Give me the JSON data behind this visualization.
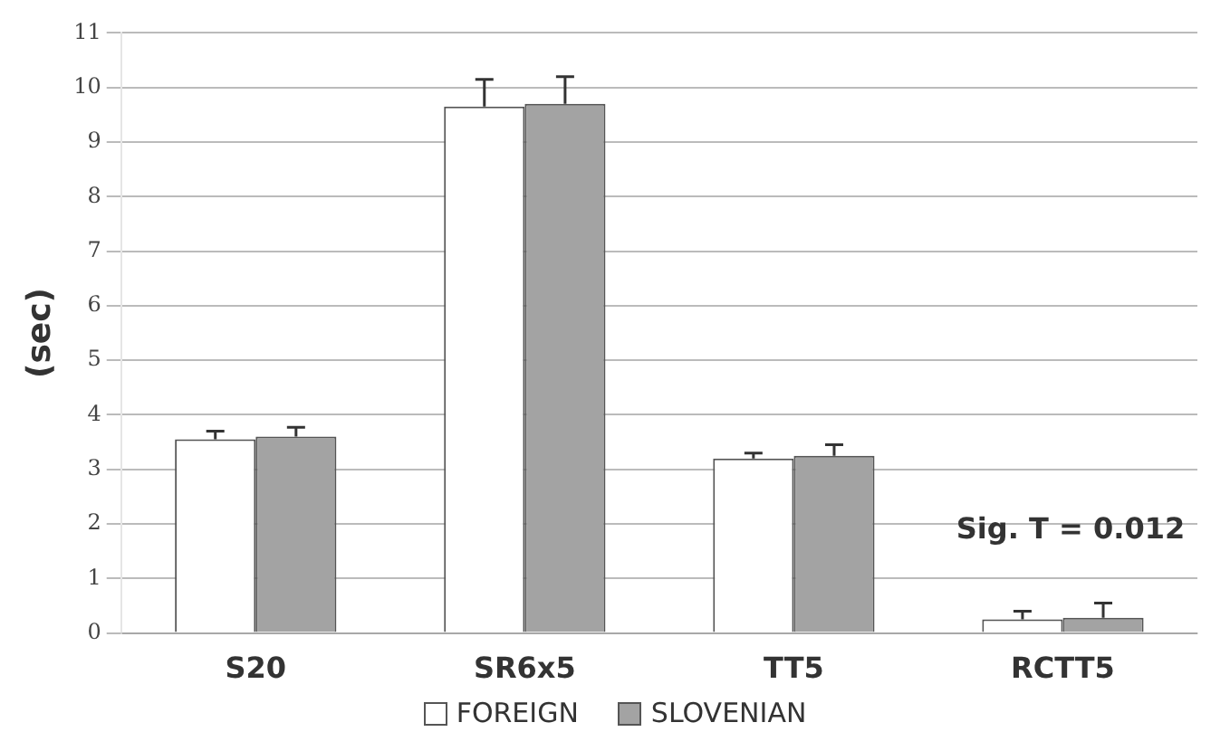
{
  "chart_data": {
    "type": "bar",
    "ylabel": "(sec)",
    "categories": [
      "S20",
      "SR6x5",
      "TT5",
      "RCTT5"
    ],
    "series": [
      {
        "name": "FOREIGN",
        "color": "#ffffff",
        "values": [
          3.55,
          9.65,
          3.2,
          0.25
        ],
        "errors": [
          [
            3.55,
            3.7
          ],
          [
            9.65,
            10.15
          ],
          [
            3.2,
            3.3
          ],
          [
            0.25,
            0.4
          ]
        ]
      },
      {
        "name": "SLOVENIAN",
        "color": "#a3a3a3",
        "values": [
          3.6,
          9.7,
          3.25,
          0.28
        ],
        "errors": [
          [
            3.6,
            3.77
          ],
          [
            9.7,
            10.2
          ],
          [
            3.25,
            3.45
          ],
          [
            0.28,
            0.55
          ]
        ]
      }
    ],
    "ylim": [
      0,
      11
    ],
    "yticks": [
      0,
      1,
      2,
      3,
      4,
      5,
      6,
      7,
      8,
      9,
      10,
      11
    ],
    "grid": "y",
    "legend": "bottom",
    "annotations": [
      "Sig. T = 0.012"
    ]
  }
}
